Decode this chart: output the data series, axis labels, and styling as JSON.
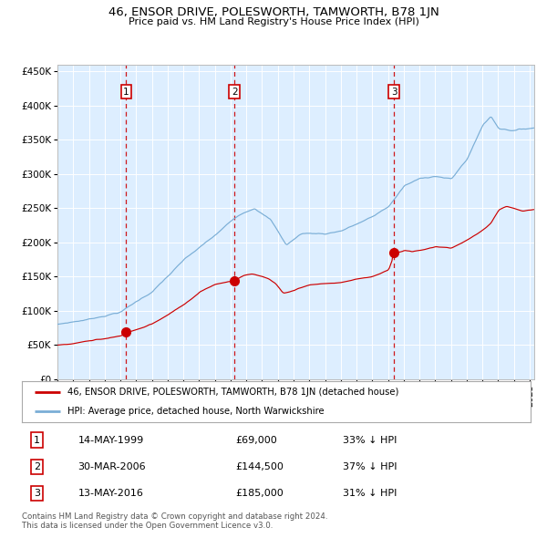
{
  "title": "46, ENSOR DRIVE, POLESWORTH, TAMWORTH, B78 1JN",
  "subtitle": "Price paid vs. HM Land Registry's House Price Index (HPI)",
  "legend_line1": "46, ENSOR DRIVE, POLESWORTH, TAMWORTH, B78 1JN (detached house)",
  "legend_line2": "HPI: Average price, detached house, North Warwickshire",
  "footer1": "Contains HM Land Registry data © Crown copyright and database right 2024.",
  "footer2": "This data is licensed under the Open Government Licence v3.0.",
  "transactions": [
    {
      "num": 1,
      "date": "14-MAY-1999",
      "price": 69000,
      "pct": "33%",
      "year": 1999.37
    },
    {
      "num": 2,
      "date": "30-MAR-2006",
      "price": 144500,
      "pct": "37%",
      "year": 2006.25
    },
    {
      "num": 3,
      "date": "13-MAY-2016",
      "price": 185000,
      "pct": "31%",
      "year": 2016.37
    }
  ],
  "red_line_color": "#cc0000",
  "blue_line_color": "#7aaed6",
  "background_color": "#ddeeff",
  "vline_color": "#cc0000",
  "box_color": "#cc0000",
  "ylim": [
    0,
    460000
  ],
  "xlim_start": 1995.0,
  "xlim_end": 2025.3
}
